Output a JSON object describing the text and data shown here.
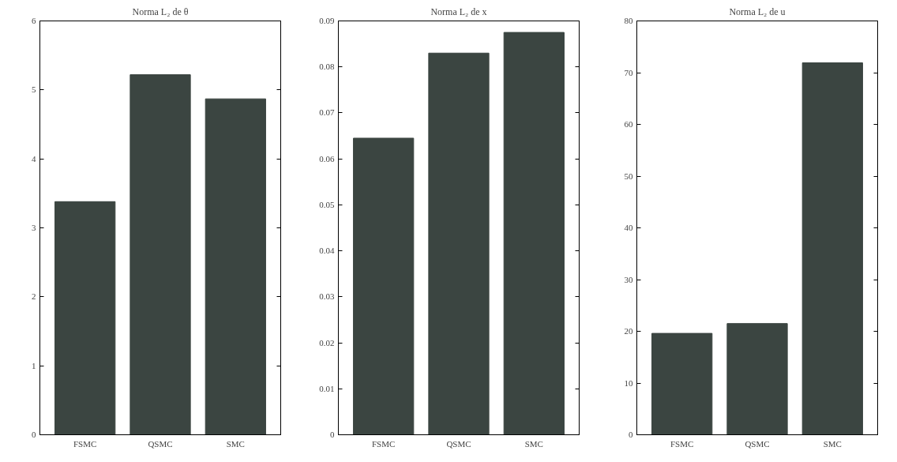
{
  "chart_data": [
    {
      "type": "bar",
      "title": "Norma L₂ de θ",
      "categories": [
        "FSMC",
        "QSMC",
        "SMC"
      ],
      "values": [
        3.38,
        5.22,
        4.87
      ],
      "color": "#3b4541",
      "ylim": [
        0,
        6
      ],
      "yticks": [
        0,
        1,
        2,
        3,
        4,
        5,
        6
      ],
      "grid": false
    },
    {
      "type": "bar",
      "title": "Norma L₂ de x",
      "categories": [
        "FSMC",
        "QSMC",
        "SMC"
      ],
      "values": [
        0.0645,
        0.083,
        0.0875
      ],
      "color": "#3b4541",
      "ylim": [
        0,
        0.09
      ],
      "yticks": [
        0,
        0.01,
        0.02,
        0.03,
        0.04,
        0.05,
        0.06,
        0.07,
        0.08,
        0.09
      ],
      "grid": false
    },
    {
      "type": "bar",
      "title": "Norma L₂ de u",
      "categories": [
        "FSMC",
        "QSMC",
        "SMC"
      ],
      "values": [
        19.6,
        21.5,
        71.9
      ],
      "color": "#3b4541",
      "ylim": [
        0,
        80
      ],
      "yticks": [
        0,
        10,
        20,
        30,
        40,
        50,
        60,
        70,
        80
      ],
      "grid": false
    }
  ]
}
